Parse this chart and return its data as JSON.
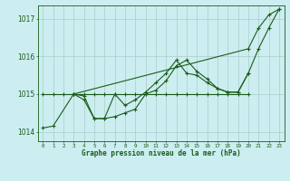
{
  "background_color": "#cceef0",
  "grid_color": "#aacccc",
  "line_color": "#1a5c1a",
  "title": "Graphe pression niveau de la mer (hPa)",
  "hours": [
    0,
    1,
    2,
    3,
    4,
    5,
    6,
    7,
    8,
    9,
    10,
    11,
    12,
    13,
    14,
    15,
    16,
    17,
    18,
    19,
    20,
    21,
    22,
    23
  ],
  "ylim": [
    1013.75,
    1017.35
  ],
  "yticks": [
    1014,
    1015,
    1016,
    1017
  ],
  "series_flat": {
    "x": [
      0,
      1,
      2,
      3,
      4,
      5,
      6,
      7,
      8,
      9,
      10,
      11,
      12,
      13,
      14,
      15,
      16,
      17,
      18,
      19,
      20
    ],
    "y": [
      1015.0,
      1015.0,
      1015.0,
      1015.0,
      1015.0,
      1015.0,
      1015.0,
      1015.0,
      1015.0,
      1015.0,
      1015.0,
      1015.0,
      1015.0,
      1015.0,
      1015.0,
      1015.0,
      1015.0,
      1015.0,
      1015.0,
      1015.0,
      1015.0
    ]
  },
  "series_diagonal": {
    "x": [
      3,
      20,
      21,
      22,
      23
    ],
    "y": [
      1015.0,
      1016.2,
      1016.75,
      1017.1,
      1017.25
    ]
  },
  "series_low": {
    "x": [
      0,
      1,
      3,
      4,
      5,
      6,
      7,
      8,
      9,
      10,
      11,
      12,
      13,
      14,
      15,
      16,
      17,
      18,
      19,
      20,
      21,
      22,
      23
    ],
    "y": [
      1014.1,
      1014.15,
      1015.0,
      1014.85,
      1014.35,
      1014.35,
      1014.4,
      1014.5,
      1014.6,
      1015.0,
      1015.1,
      1015.35,
      1015.75,
      1015.9,
      1015.6,
      1015.4,
      1015.15,
      1015.05,
      1015.05,
      1015.55,
      1016.2,
      1016.75,
      1017.25
    ]
  },
  "series_zigzag": {
    "x": [
      3,
      4,
      5,
      6,
      7,
      8,
      9,
      10,
      11,
      12,
      13,
      14,
      15,
      16,
      17,
      18,
      19,
      20
    ],
    "y": [
      1015.0,
      1014.95,
      1014.35,
      1014.35,
      1015.0,
      1014.7,
      1014.85,
      1015.05,
      1015.3,
      1015.55,
      1015.9,
      1015.55,
      1015.5,
      1015.3,
      1015.15,
      1015.05,
      1015.05,
      1015.55
    ]
  }
}
